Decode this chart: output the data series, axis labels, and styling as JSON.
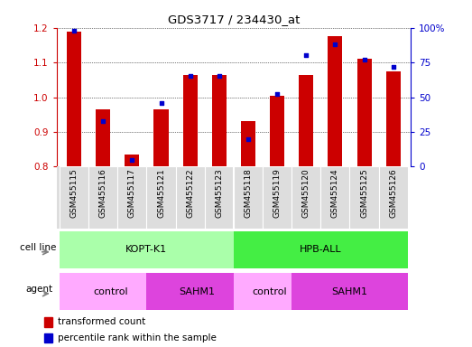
{
  "title": "GDS3717 / 234430_at",
  "samples": [
    "GSM455115",
    "GSM455116",
    "GSM455117",
    "GSM455121",
    "GSM455122",
    "GSM455123",
    "GSM455118",
    "GSM455119",
    "GSM455120",
    "GSM455124",
    "GSM455125",
    "GSM455126"
  ],
  "red_values": [
    1.19,
    0.965,
    0.835,
    0.965,
    1.065,
    1.065,
    0.93,
    1.005,
    1.065,
    1.175,
    1.11,
    1.075
  ],
  "blue_values": [
    98,
    33,
    5,
    46,
    65,
    65,
    20,
    52,
    80,
    88,
    77,
    72
  ],
  "ylim_left": [
    0.8,
    1.2
  ],
  "ylim_right": [
    0,
    100
  ],
  "yticks_left": [
    0.8,
    0.9,
    1.0,
    1.1,
    1.2
  ],
  "yticks_right": [
    0,
    25,
    50,
    75,
    100
  ],
  "ytick_labels_right": [
    "0",
    "25",
    "50",
    "75",
    "100%"
  ],
  "bar_color": "#cc0000",
  "dot_color": "#0000cc",
  "background_color": "#ffffff",
  "cell_line_light": "#aaffaa",
  "cell_line_dark": "#44ee44",
  "agent_light": "#ffaaff",
  "agent_dark": "#dd44dd",
  "legend_red": "transformed count",
  "legend_blue": "percentile rank within the sample",
  "tick_color_left": "#cc0000",
  "tick_color_right": "#0000cc"
}
